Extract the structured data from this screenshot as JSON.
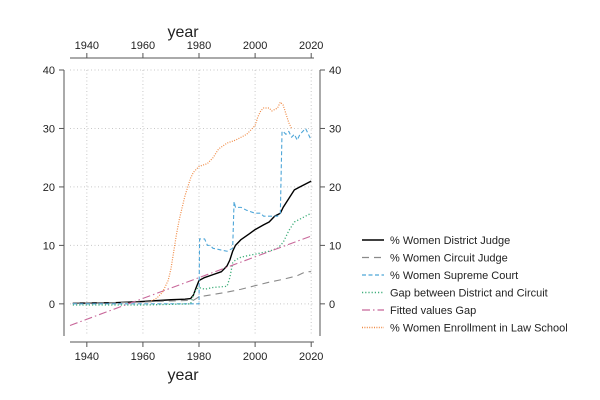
{
  "chart_data": {
    "type": "line",
    "xlabel_top": "year",
    "xlabel_bottom": "year",
    "ylabel": "",
    "xlim": [
      1934,
      2021
    ],
    "ylim": [
      -5.5,
      40
    ],
    "x_ticks": [
      1940,
      1960,
      1980,
      2000,
      2020
    ],
    "y_ticks": [
      0,
      10,
      20,
      30,
      40
    ],
    "grid": true,
    "legend_placement": "right",
    "series": [
      {
        "name": "% Women District Judge",
        "color": "#000000",
        "style": "solid",
        "points": [
          [
            1935,
            0.1
          ],
          [
            1950,
            0.2
          ],
          [
            1960,
            0.4
          ],
          [
            1970,
            0.7
          ],
          [
            1975,
            0.8
          ],
          [
            1977,
            0.9
          ],
          [
            1978,
            1.5
          ],
          [
            1979,
            2.8
          ],
          [
            1980,
            4.0
          ],
          [
            1982,
            4.5
          ],
          [
            1985,
            5.0
          ],
          [
            1988,
            5.5
          ],
          [
            1990,
            6.5
          ],
          [
            1991,
            7.5
          ],
          [
            1992,
            9.0
          ],
          [
            1993,
            10.0
          ],
          [
            1995,
            11.0
          ],
          [
            1998,
            12.0
          ],
          [
            2000,
            12.7
          ],
          [
            2003,
            13.5
          ],
          [
            2005,
            14.0
          ],
          [
            2007,
            15.0
          ],
          [
            2009,
            15.5
          ],
          [
            2010,
            16.5
          ],
          [
            2012,
            18.0
          ],
          [
            2014,
            19.5
          ],
          [
            2016,
            20.0
          ],
          [
            2018,
            20.5
          ],
          [
            2020,
            21.0
          ]
        ]
      },
      {
        "name": "% Women Circuit Judge",
        "color": "#8a8a8a",
        "style": "longdash",
        "points": [
          [
            1935,
            0.1
          ],
          [
            1950,
            0.2
          ],
          [
            1960,
            0.3
          ],
          [
            1970,
            0.5
          ],
          [
            1978,
            0.6
          ],
          [
            1980,
            1.2
          ],
          [
            1985,
            1.6
          ],
          [
            1990,
            2.0
          ],
          [
            1995,
            2.5
          ],
          [
            2000,
            3.1
          ],
          [
            2005,
            3.7
          ],
          [
            2010,
            4.2
          ],
          [
            2015,
            4.8
          ],
          [
            2018,
            5.5
          ],
          [
            2020,
            5.5
          ]
        ]
      },
      {
        "name": "% Women Supreme Court",
        "color": "#4ea6d8",
        "style": "dash",
        "points": [
          [
            1935,
            0.0
          ],
          [
            1979,
            0.0
          ],
          [
            1980,
            0.0
          ],
          [
            1980.2,
            11.1
          ],
          [
            1982,
            11.1
          ],
          [
            1983,
            10.0
          ],
          [
            1984,
            10.0
          ],
          [
            1985,
            9.5
          ],
          [
            1990,
            9.0
          ],
          [
            1992,
            9.5
          ],
          [
            1992.5,
            17.5
          ],
          [
            1993,
            16.5
          ],
          [
            1995,
            16.5
          ],
          [
            1997,
            16.0
          ],
          [
            2000,
            15.5
          ],
          [
            2002,
            15.5
          ],
          [
            2003,
            15.0
          ],
          [
            2008,
            15.0
          ],
          [
            2009,
            15.5
          ],
          [
            2009.6,
            29.5
          ],
          [
            2010,
            29.5
          ],
          [
            2011,
            29.0
          ],
          [
            2012,
            29.5
          ],
          [
            2013,
            28.5
          ],
          [
            2014,
            29.0
          ],
          [
            2015,
            28.0
          ],
          [
            2016,
            29.0
          ],
          [
            2017,
            29.5
          ],
          [
            2018,
            30.0
          ],
          [
            2019,
            29.0
          ],
          [
            2020,
            28.0
          ]
        ]
      },
      {
        "name": "Gap between District and Circuit",
        "color": "#3fae7a",
        "style": "dot",
        "points": [
          [
            1935,
            -0.2
          ],
          [
            1960,
            -0.2
          ],
          [
            1977,
            0.0
          ],
          [
            1978,
            1.5
          ],
          [
            1979,
            2.5
          ],
          [
            1980,
            2.8
          ],
          [
            1982,
            2.5
          ],
          [
            1985,
            2.8
          ],
          [
            1990,
            3.0
          ],
          [
            1991,
            4.5
          ],
          [
            1992,
            7.0
          ],
          [
            1993,
            7.5
          ],
          [
            1995,
            8.0
          ],
          [
            2000,
            8.5
          ],
          [
            2005,
            9.0
          ],
          [
            2008,
            9.5
          ],
          [
            2010,
            10.5
          ],
          [
            2012,
            12.5
          ],
          [
            2014,
            14.0
          ],
          [
            2016,
            14.5
          ],
          [
            2018,
            15.0
          ],
          [
            2020,
            15.5
          ]
        ]
      },
      {
        "name": "Fitted values Gap",
        "color": "#c8689a",
        "style": "dashdot",
        "points": [
          [
            1934,
            -3.7
          ],
          [
            2020,
            11.6
          ]
        ]
      },
      {
        "name": "% Women Enrollment in Law School",
        "color": "#f08a44",
        "style": "tinydot",
        "points": [
          [
            1963,
            0.5
          ],
          [
            1965,
            1.0
          ],
          [
            1967,
            2.0
          ],
          [
            1969,
            4.0
          ],
          [
            1970,
            6.0
          ],
          [
            1971,
            9.0
          ],
          [
            1972,
            12.0
          ],
          [
            1973,
            14.5
          ],
          [
            1974,
            16.5
          ],
          [
            1975,
            18.5
          ],
          [
            1976,
            20.0
          ],
          [
            1977,
            21.5
          ],
          [
            1978,
            22.5
          ],
          [
            1979,
            23.0
          ],
          [
            1980,
            23.5
          ],
          [
            1983,
            24.0
          ],
          [
            1985,
            25.0
          ],
          [
            1987,
            26.5
          ],
          [
            1990,
            27.5
          ],
          [
            1993,
            28.0
          ],
          [
            1995,
            28.5
          ],
          [
            1997,
            29.0
          ],
          [
            1998,
            29.5
          ],
          [
            2000,
            30.5
          ],
          [
            2001,
            32.0
          ],
          [
            2002,
            33.0
          ],
          [
            2003,
            33.5
          ],
          [
            2005,
            33.5
          ],
          [
            2006,
            33.0
          ],
          [
            2008,
            33.5
          ],
          [
            2009,
            34.5
          ],
          [
            2010,
            34.0
          ],
          [
            2011,
            32.5
          ],
          [
            2012,
            31.0
          ],
          [
            2013,
            30.0
          ]
        ]
      }
    ]
  }
}
